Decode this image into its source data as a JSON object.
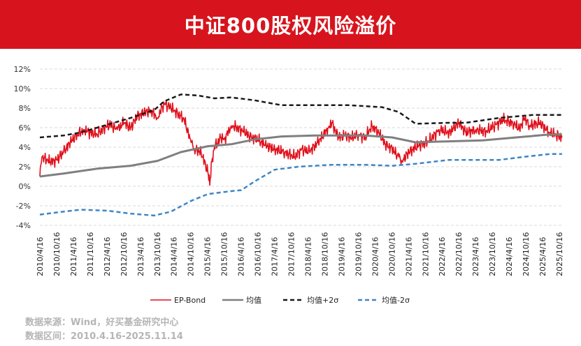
{
  "header": {
    "title": "中证800股权风险溢价"
  },
  "footer": {
    "source": "数据来源：Wind，好买基金研究中心",
    "range": "数据区间：2010.4.16-2025.11.14"
  },
  "colors": {
    "banner": "#d7141d",
    "ep": "#e0101c",
    "mean": "#7f7f7f",
    "plus": "#1a1a1a",
    "minus": "#3d86c6"
  },
  "chart_data": {
    "type": "line",
    "title": "中证800股权风险溢价",
    "ylim": [
      -4,
      12
    ],
    "yticks": [
      "-4%",
      "-2%",
      "0%",
      "2%",
      "4%",
      "6%",
      "8%",
      "10%",
      "12%"
    ],
    "ytick_values": [
      -4,
      -2,
      0,
      2,
      4,
      6,
      8,
      10,
      12
    ],
    "xticks": [
      "2010/4/16",
      "2010/10/16",
      "2011/4/16",
      "2011/10/16",
      "2012/4/16",
      "2012/10/16",
      "2013/4/16",
      "2013/10/16",
      "2014/4/16",
      "2014/10/16",
      "2015/4/16",
      "2015/10/16",
      "2016/4/16",
      "2016/10/16",
      "2017/4/16",
      "2017/10/16",
      "2018/4/16",
      "2018/10/16",
      "2019/4/16",
      "2019/10/16",
      "2020/4/16",
      "2020/10/16",
      "2021/4/16",
      "2021/10/16",
      "2022/4/16",
      "2022/10/16",
      "2023/4/16",
      "2023/10/16",
      "2024/4/16",
      "2024/10/16",
      "2025/4/16",
      "2025/10/16"
    ],
    "xlim": [
      2010.29,
      2025.79
    ],
    "legend_position": "bottom",
    "series": [
      {
        "name": "EP-Bond",
        "style": "solid",
        "points": [
          [
            2010.29,
            1.0
          ],
          [
            2010.35,
            3.0
          ],
          [
            2010.6,
            2.5
          ],
          [
            2010.8,
            2.7
          ],
          [
            2011.0,
            3.5
          ],
          [
            2011.2,
            4.5
          ],
          [
            2011.4,
            5.3
          ],
          [
            2011.6,
            5.8
          ],
          [
            2011.8,
            5.5
          ],
          [
            2012.0,
            5.3
          ],
          [
            2012.2,
            6.0
          ],
          [
            2012.4,
            6.3
          ],
          [
            2012.6,
            5.8
          ],
          [
            2012.8,
            6.5
          ],
          [
            2013.0,
            6.0
          ],
          [
            2013.2,
            7.2
          ],
          [
            2013.4,
            7.5
          ],
          [
            2013.6,
            7.8
          ],
          [
            2013.8,
            7.0
          ],
          [
            2014.0,
            8.5
          ],
          [
            2014.2,
            8.0
          ],
          [
            2014.4,
            7.5
          ],
          [
            2014.6,
            6.8
          ],
          [
            2014.8,
            4.5
          ],
          [
            2014.9,
            3.8
          ],
          [
            2015.1,
            3.5
          ],
          [
            2015.3,
            1.5
          ],
          [
            2015.36,
            0.1
          ],
          [
            2015.42,
            2.5
          ],
          [
            2015.5,
            4.0
          ],
          [
            2015.7,
            5.0
          ],
          [
            2015.8,
            4.8
          ],
          [
            2016.0,
            6.2
          ],
          [
            2016.2,
            6.0
          ],
          [
            2016.4,
            5.5
          ],
          [
            2016.6,
            5.0
          ],
          [
            2016.8,
            4.8
          ],
          [
            2017.0,
            4.2
          ],
          [
            2017.3,
            3.8
          ],
          [
            2017.6,
            3.5
          ],
          [
            2017.9,
            3.0
          ],
          [
            2018.1,
            3.8
          ],
          [
            2018.3,
            3.5
          ],
          [
            2018.6,
            4.5
          ],
          [
            2018.9,
            6.0
          ],
          [
            2019.0,
            6.5
          ],
          [
            2019.2,
            5.0
          ],
          [
            2019.4,
            5.2
          ],
          [
            2019.6,
            5.0
          ],
          [
            2019.8,
            5.3
          ],
          [
            2020.0,
            5.0
          ],
          [
            2020.2,
            6.2
          ],
          [
            2020.4,
            5.5
          ],
          [
            2020.6,
            4.3
          ],
          [
            2020.8,
            3.8
          ],
          [
            2021.0,
            3.0
          ],
          [
            2021.1,
            2.6
          ],
          [
            2021.3,
            3.5
          ],
          [
            2021.6,
            4.2
          ],
          [
            2021.9,
            4.6
          ],
          [
            2022.2,
            5.8
          ],
          [
            2022.5,
            5.5
          ],
          [
            2022.8,
            6.5
          ],
          [
            2023.0,
            5.5
          ],
          [
            2023.3,
            5.8
          ],
          [
            2023.6,
            5.6
          ],
          [
            2023.9,
            6.3
          ],
          [
            2024.1,
            6.8
          ],
          [
            2024.4,
            6.5
          ],
          [
            2024.6,
            5.9
          ],
          [
            2024.75,
            7.0
          ],
          [
            2024.9,
            6.2
          ],
          [
            2025.2,
            6.5
          ],
          [
            2025.5,
            5.5
          ],
          [
            2025.87,
            5.0
          ]
        ]
      },
      {
        "name": "均值",
        "style": "solid-thick",
        "points": [
          [
            2010.29,
            1.0
          ],
          [
            2011.0,
            1.3
          ],
          [
            2012.0,
            1.8
          ],
          [
            2013.0,
            2.1
          ],
          [
            2013.8,
            2.6
          ],
          [
            2014.5,
            3.5
          ],
          [
            2015.3,
            4.1
          ],
          [
            2016.0,
            4.3
          ],
          [
            2016.7,
            4.8
          ],
          [
            2017.5,
            5.1
          ],
          [
            2018.5,
            5.2
          ],
          [
            2020.0,
            5.2
          ],
          [
            2020.8,
            5.0
          ],
          [
            2021.5,
            4.5
          ],
          [
            2022.5,
            4.6
          ],
          [
            2023.5,
            4.7
          ],
          [
            2024.5,
            5.0
          ],
          [
            2025.5,
            5.3
          ],
          [
            2025.87,
            5.3
          ]
        ]
      },
      {
        "name": "均值+2σ",
        "style": "dashed",
        "points": [
          [
            2010.29,
            5.0
          ],
          [
            2011.0,
            5.2
          ],
          [
            2011.5,
            5.5
          ],
          [
            2012.0,
            6.0
          ],
          [
            2012.5,
            6.5
          ],
          [
            2013.0,
            7.0
          ],
          [
            2013.7,
            7.8
          ],
          [
            2014.0,
            8.7
          ],
          [
            2014.5,
            9.4
          ],
          [
            2015.0,
            9.3
          ],
          [
            2015.5,
            9.0
          ],
          [
            2016.0,
            9.1
          ],
          [
            2016.7,
            8.8
          ],
          [
            2017.5,
            8.3
          ],
          [
            2019.5,
            8.3
          ],
          [
            2020.5,
            8.1
          ],
          [
            2021.0,
            7.6
          ],
          [
            2021.5,
            6.4
          ],
          [
            2022.5,
            6.5
          ],
          [
            2023.0,
            6.5
          ],
          [
            2024.0,
            7.0
          ],
          [
            2025.0,
            7.3
          ],
          [
            2025.87,
            7.3
          ]
        ]
      },
      {
        "name": "均值-2σ",
        "style": "dashed",
        "points": [
          [
            2010.29,
            -2.9
          ],
          [
            2011.0,
            -2.6
          ],
          [
            2011.5,
            -2.4
          ],
          [
            2012.3,
            -2.5
          ],
          [
            2013.0,
            -2.8
          ],
          [
            2013.7,
            -3.0
          ],
          [
            2014.2,
            -2.6
          ],
          [
            2014.8,
            -1.5
          ],
          [
            2015.3,
            -0.8
          ],
          [
            2016.0,
            -0.5
          ],
          [
            2016.3,
            -0.4
          ],
          [
            2016.7,
            0.5
          ],
          [
            2017.3,
            1.7
          ],
          [
            2018.0,
            2.0
          ],
          [
            2019.0,
            2.2
          ],
          [
            2020.0,
            2.2
          ],
          [
            2020.8,
            2.1
          ],
          [
            2021.5,
            2.3
          ],
          [
            2022.5,
            2.7
          ],
          [
            2024.0,
            2.7
          ],
          [
            2024.7,
            3.0
          ],
          [
            2025.5,
            3.3
          ],
          [
            2025.87,
            3.3
          ]
        ]
      }
    ]
  }
}
